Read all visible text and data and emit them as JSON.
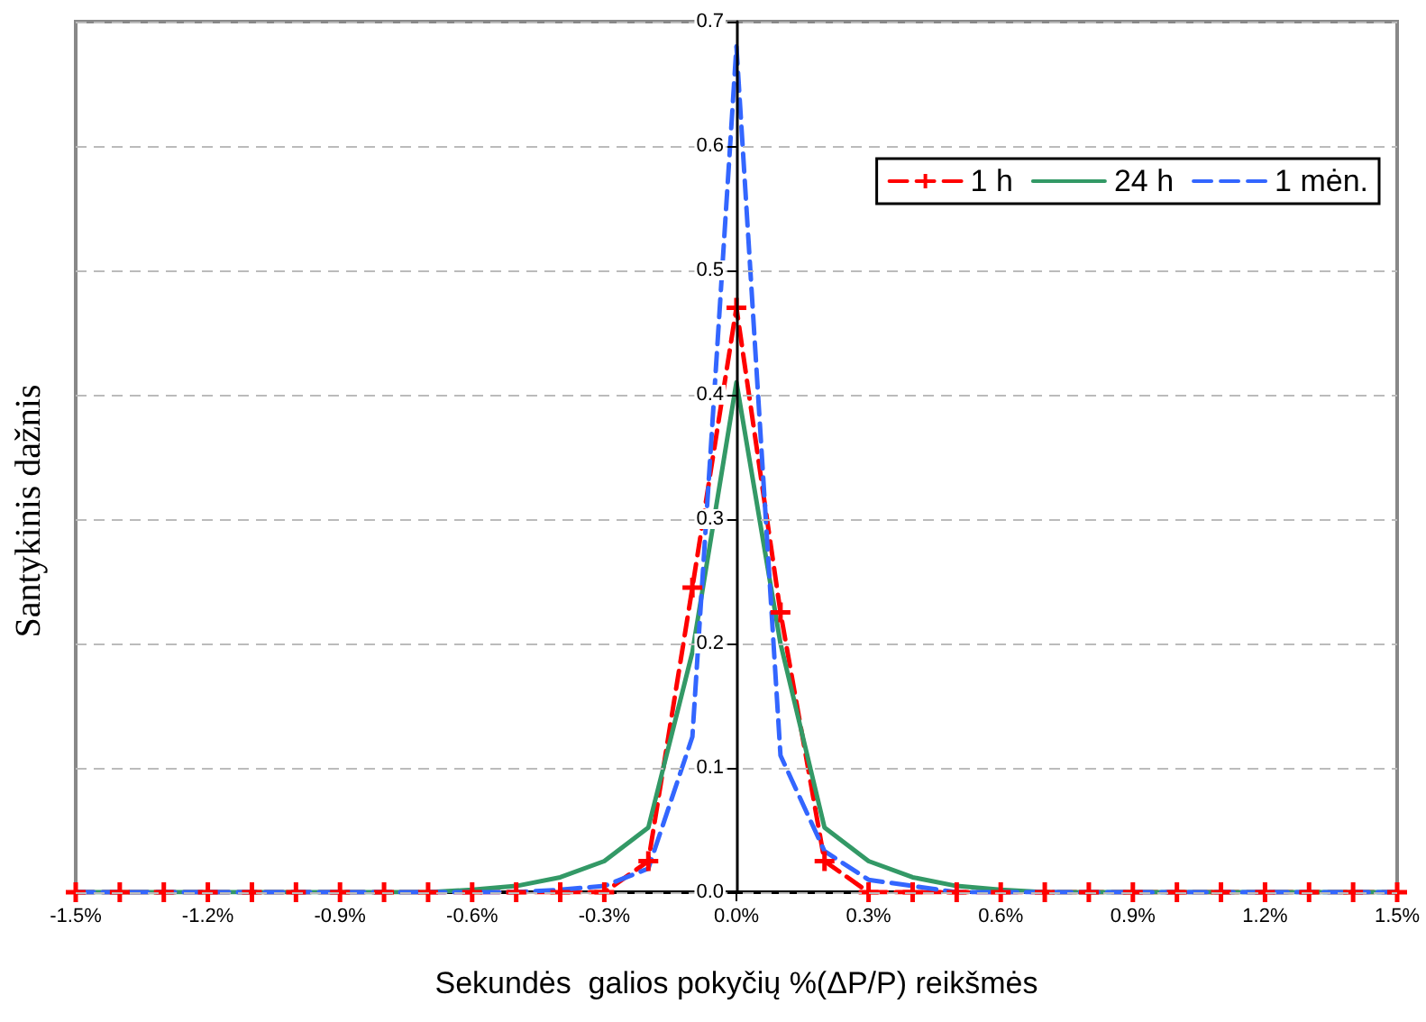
{
  "chart_data": {
    "type": "line",
    "xlabel": "Sekundės  galios pokyčių %(ΔP/P) reikšmės",
    "ylabel": "Santykinis dažnis",
    "x": [
      -1.5,
      -1.4,
      -1.3,
      -1.2,
      -1.1,
      -1.0,
      -0.9,
      -0.8,
      -0.7,
      -0.6,
      -0.5,
      -0.4,
      -0.3,
      -0.2,
      -0.1,
      0.0,
      0.1,
      0.2,
      0.3,
      0.4,
      0.5,
      0.6,
      0.7,
      0.8,
      0.9,
      1.0,
      1.1,
      1.2,
      1.3,
      1.4,
      1.5
    ],
    "series": [
      {
        "name": "1 h",
        "color": "#ff0000",
        "marker": "cross",
        "line_style": "dashed",
        "values": [
          0,
          0,
          0,
          0,
          0,
          0,
          0,
          0,
          0,
          0,
          0,
          0,
          0,
          0.025,
          0.245,
          0.47,
          0.225,
          0.025,
          0,
          0,
          0,
          0,
          0,
          0,
          0,
          0,
          0,
          0,
          0,
          0,
          0
        ]
      },
      {
        "name": "24 h",
        "color": "#339966",
        "line_style": "solid",
        "values": [
          0,
          0,
          0,
          0,
          0,
          0,
          0,
          0,
          0,
          0.002,
          0.005,
          0.012,
          0.025,
          0.052,
          0.193,
          0.41,
          0.2,
          0.052,
          0.025,
          0.012,
          0.005,
          0.002,
          0,
          0,
          0,
          0,
          0,
          0,
          0,
          0,
          0
        ]
      },
      {
        "name": "1 mėn.",
        "color": "#3366ff",
        "line_style": "dashed",
        "values": [
          0,
          0,
          0,
          0,
          0,
          0,
          0,
          0,
          0,
          0,
          0,
          0.002,
          0.005,
          0.019,
          0.125,
          0.68,
          0.11,
          0.033,
          0.01,
          0.005,
          0,
          0,
          0,
          0,
          0,
          0,
          0,
          0,
          0,
          0,
          0
        ]
      }
    ],
    "xlim": [
      -1.5,
      1.5
    ],
    "xticks": [
      {
        "value": -1.5,
        "label": "-1.5%"
      },
      {
        "value": -1.2,
        "label": "-1.2%"
      },
      {
        "value": -0.9,
        "label": "-0.9%"
      },
      {
        "value": -0.6,
        "label": "-0.6%"
      },
      {
        "value": -0.3,
        "label": "-0.3%"
      },
      {
        "value": 0,
        "label": "0.0%"
      },
      {
        "value": 0.3,
        "label": "0.3%"
      },
      {
        "value": 0.6,
        "label": "0.6%"
      },
      {
        "value": 0.9,
        "label": "0.9%"
      },
      {
        "value": 1.2,
        "label": "1.2%"
      },
      {
        "value": 1.5,
        "label": "1.5%"
      }
    ],
    "ylim": [
      0,
      0.7
    ],
    "yticks": [
      {
        "value": 0,
        "label": "0.0"
      },
      {
        "value": 0.1,
        "label": "0.1"
      },
      {
        "value": 0.2,
        "label": "0.2"
      },
      {
        "value": 0.3,
        "label": "0.3"
      },
      {
        "value": 0.4,
        "label": "0.4"
      },
      {
        "value": 0.5,
        "label": "0.5"
      },
      {
        "value": 0.6,
        "label": "0.6"
      },
      {
        "value": 0.7,
        "label": "0.7"
      }
    ],
    "grid": "y",
    "legend": "top right"
  }
}
